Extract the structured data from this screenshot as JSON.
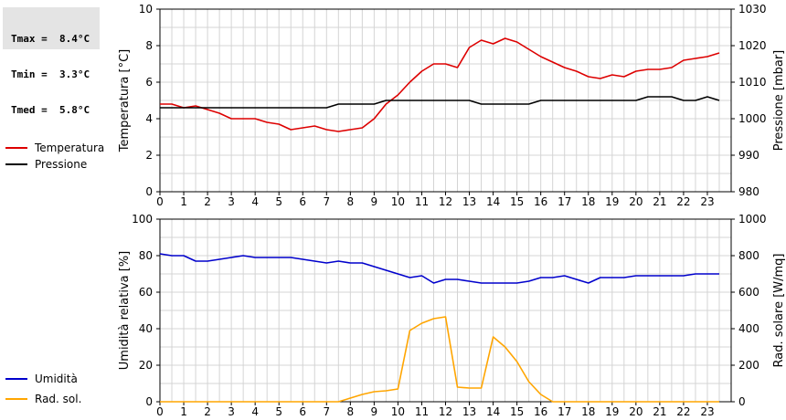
{
  "stats": [
    {
      "label": "Tmax =",
      "value": "8.4°C"
    },
    {
      "label": "Tmin =",
      "value": "3.3°C"
    },
    {
      "label": "Tmed =",
      "value": "5.8°C"
    }
  ],
  "chart_data": [
    {
      "type": "line",
      "x_ticks": [
        "0",
        "1",
        "2",
        "3",
        "4",
        "5",
        "6",
        "7",
        "8",
        "9",
        "10",
        "11",
        "12",
        "13",
        "14",
        "15",
        "16",
        "17",
        "18",
        "19",
        "20",
        "21",
        "22",
        "23"
      ],
      "xlim": [
        0,
        24
      ],
      "grid": true,
      "legend_placement": "left",
      "ylabel_left": "Temperatura [°C]",
      "ylabel_right": "Pressione [mbar]",
      "ylim_left": [
        0,
        10
      ],
      "ylim_right": [
        980,
        1030
      ],
      "yticks_left": [
        "0",
        "2",
        "4",
        "6",
        "8",
        "10"
      ],
      "yticks_right": [
        "980",
        "990",
        "1000",
        "1010",
        "1020",
        "1030"
      ],
      "series": [
        {
          "name": "Temperatura",
          "axis": "left",
          "color": "#dd0000",
          "x": [
            0,
            0.5,
            1,
            1.5,
            2,
            2.5,
            3,
            3.5,
            4,
            4.5,
            5,
            5.5,
            6,
            6.5,
            7,
            7.5,
            8,
            8.5,
            9,
            9.5,
            10,
            10.5,
            11,
            11.5,
            12,
            12.5,
            13,
            13.5,
            14,
            14.5,
            15,
            15.5,
            16,
            16.5,
            17,
            17.5,
            18,
            18.5,
            19,
            19.5,
            20,
            20.5,
            21,
            21.5,
            22,
            22.5,
            23,
            23.5
          ],
          "values": [
            4.8,
            4.8,
            4.6,
            4.7,
            4.5,
            4.3,
            4.0,
            4.0,
            4.0,
            3.8,
            3.7,
            3.4,
            3.5,
            3.6,
            3.4,
            3.3,
            3.4,
            3.5,
            4.0,
            4.8,
            5.3,
            6.0,
            6.6,
            7.0,
            7.0,
            6.8,
            7.9,
            8.3,
            8.1,
            8.4,
            8.2,
            7.8,
            7.4,
            7.1,
            6.8,
            6.6,
            6.3,
            6.2,
            6.4,
            6.3,
            6.6,
            6.7,
            6.7,
            6.8,
            7.2,
            7.3,
            7.4,
            7.6
          ]
        },
        {
          "name": "Pressione",
          "axis": "right",
          "color": "#000000",
          "x": [
            0,
            1,
            2,
            3,
            4,
            5,
            6,
            7,
            7.5,
            8,
            9,
            9.5,
            10,
            11,
            12,
            13,
            13.5,
            14,
            15,
            15.5,
            16,
            17,
            18,
            19,
            20,
            20.5,
            21,
            21.5,
            22,
            22.5,
            23,
            23.5
          ],
          "values": [
            1003,
            1003,
            1003,
            1003,
            1003,
            1003,
            1003,
            1003,
            1004,
            1004,
            1004,
            1005,
            1005,
            1005,
            1005,
            1005,
            1004,
            1004,
            1004,
            1004,
            1005,
            1005,
            1005,
            1005,
            1005,
            1006,
            1006,
            1006,
            1005,
            1005,
            1006,
            1005
          ]
        }
      ]
    },
    {
      "type": "line",
      "x_ticks": [
        "0",
        "1",
        "2",
        "3",
        "4",
        "5",
        "6",
        "7",
        "8",
        "9",
        "10",
        "11",
        "12",
        "13",
        "14",
        "15",
        "16",
        "17",
        "18",
        "19",
        "20",
        "21",
        "22",
        "23"
      ],
      "xlim": [
        0,
        24
      ],
      "grid": true,
      "legend_placement": "left",
      "ylabel_left": "Umidità relativa [%]",
      "ylabel_right": "Rad. solare [W/mq]",
      "ylim_left": [
        0,
        100
      ],
      "ylim_right": [
        0,
        1000
      ],
      "yticks_left": [
        "0",
        "20",
        "40",
        "60",
        "80",
        "100"
      ],
      "yticks_right": [
        "0",
        "200",
        "400",
        "600",
        "800",
        "1000"
      ],
      "series": [
        {
          "name": "Umidità",
          "axis": "left",
          "color": "#0000cc",
          "x": [
            0,
            0.5,
            1,
            1.5,
            2,
            2.5,
            3,
            3.5,
            4,
            4.5,
            5,
            5.5,
            6,
            6.5,
            7,
            7.5,
            8,
            8.5,
            9,
            9.5,
            10,
            10.5,
            11,
            11.5,
            12,
            12.5,
            13,
            13.5,
            14,
            14.5,
            15,
            15.5,
            16,
            16.5,
            17,
            17.5,
            18,
            18.5,
            19,
            19.5,
            20,
            20.5,
            21,
            21.5,
            22,
            22.5,
            23,
            23.5
          ],
          "values": [
            81,
            80,
            80,
            77,
            77,
            78,
            79,
            80,
            79,
            79,
            79,
            79,
            78,
            77,
            76,
            77,
            76,
            76,
            74,
            72,
            70,
            68,
            69,
            65,
            67,
            67,
            66,
            65,
            65,
            65,
            65,
            66,
            68,
            68,
            69,
            67,
            65,
            68,
            68,
            68,
            69,
            69,
            69,
            69,
            69,
            70,
            70,
            70
          ]
        },
        {
          "name": "Rad. sol.",
          "axis": "right",
          "color": "#ffa500",
          "x": [
            0,
            1,
            2,
            3,
            4,
            5,
            6,
            7,
            7.5,
            8,
            8.5,
            9,
            9.5,
            10,
            10.5,
            11,
            11.5,
            12,
            12.5,
            13,
            13.5,
            14,
            14.5,
            15,
            15.5,
            16,
            16.5,
            17,
            18,
            19,
            20,
            21,
            22,
            23,
            23.5
          ],
          "values": [
            0,
            0,
            0,
            0,
            0,
            0,
            0,
            0,
            0,
            20,
            40,
            55,
            60,
            70,
            390,
            430,
            455,
            465,
            80,
            75,
            75,
            355,
            300,
            220,
            110,
            40,
            0,
            0,
            0,
            0,
            0,
            0,
            0,
            0,
            0
          ]
        }
      ]
    }
  ]
}
